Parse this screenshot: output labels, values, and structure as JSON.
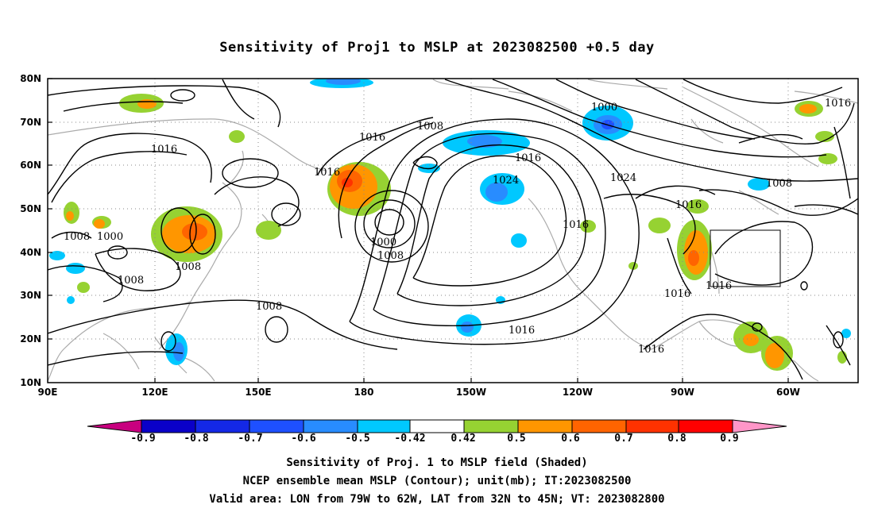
{
  "title": "Sensitivity of Proj1 to MSLP at 2023082500 +0.5 day",
  "map": {
    "lat_ticks": [
      "80N",
      "70N",
      "60N",
      "50N",
      "40N",
      "30N",
      "20N",
      "10N"
    ],
    "lon_ticks": [
      "90E",
      "120E",
      "150E",
      "180",
      "150W",
      "120W",
      "90W",
      "60W"
    ],
    "lon_range": [
      "90E",
      "50W"
    ],
    "lat_range": [
      "10N",
      "80N"
    ],
    "contour_unit": "mb",
    "contour_labels": [
      "1008",
      "1016",
      "1016",
      "1016",
      "1008",
      "1000",
      "1016",
      "1024",
      "1024",
      "1016",
      "1008",
      "1016",
      "1016",
      "1000",
      "1016",
      "1008",
      "1008",
      "1000",
      "1008",
      "1016",
      "1016",
      "1016",
      "1008"
    ],
    "valid_box": {
      "lon": [
        "79W",
        "62W"
      ],
      "lat": [
        "32N",
        "45N"
      ]
    },
    "colors": {
      "coastline": "#aaaaaa",
      "contour": "#000000",
      "grid": "#888888"
    }
  },
  "colorbar": {
    "labels": [
      "-0.9",
      "-0.8",
      "-0.7",
      "-0.6",
      "-0.5",
      "-0.42",
      "0.42",
      "0.5",
      "0.6",
      "0.7",
      "0.8",
      "0.9"
    ],
    "colors": [
      "#c8007f",
      "#0a00c8",
      "#1428e6",
      "#1e50ff",
      "#288cff",
      "#00c8ff",
      "#ffffff",
      "#96d232",
      "#ff9600",
      "#ff6400",
      "#ff3200",
      "#ff0000",
      "#ff96c8"
    ]
  },
  "footer": {
    "line1": "Sensitivity of Proj. 1 to MSLP field (Shaded)",
    "line2": "NCEP ensemble mean MSLP (Contour); unit(mb); IT:2023082500",
    "line3": "Valid area: LON from 79W to 62W, LAT from 32N to 45N; VT: 2023082800"
  }
}
